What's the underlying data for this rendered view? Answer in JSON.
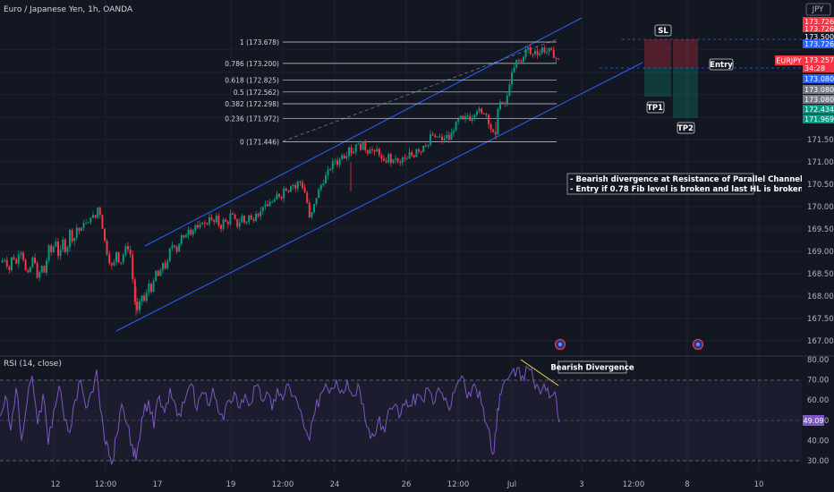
{
  "header": {
    "symbol_line": "Euro / Japanese Yen, 1h, OANDA",
    "currency": "JPY"
  },
  "price_axis": {
    "ticks": [
      "167.000",
      "167.500",
      "168.000",
      "168.500",
      "169.000",
      "169.500",
      "170.000",
      "170.500",
      "171.000",
      "171.500"
    ],
    "badges": [
      {
        "text": "173.726",
        "color": "#f23645"
      },
      {
        "text": "173.726",
        "color": "#f23645"
      },
      {
        "text": "173.500",
        "color": "#131722"
      },
      {
        "text": "173.726",
        "color": "#2962ff"
      },
      {
        "text": "173.257",
        "color": "#f23645"
      },
      {
        "text": "34:28",
        "color": "#f23645"
      },
      {
        "text": "173.080",
        "color": "#2962ff"
      },
      {
        "text": "173.080",
        "color": "#787b86"
      },
      {
        "text": "173.080",
        "color": "#787b86"
      },
      {
        "text": "172.434",
        "color": "#089981"
      },
      {
        "text": "171.969",
        "color": "#089981"
      }
    ],
    "symbol_tag": "EURJPY"
  },
  "rsi": {
    "title": "RSI (14, close)",
    "ticks": [
      "80.00",
      "70.00",
      "60.00",
      "50.00",
      "40.00",
      "30.00"
    ],
    "current": "49.09",
    "annotation": "Bearish Divergence"
  },
  "time_axis": [
    "12",
    "12:00",
    "17",
    "19",
    "12:00",
    "24",
    "26",
    "12:00",
    "Jul",
    "3",
    "12:00",
    "8",
    "10"
  ],
  "fib_levels": [
    {
      "ratio": "1",
      "label": "1 (173.678)",
      "price": 173.678
    },
    {
      "ratio": "0.786",
      "label": "0.786 (173.200)",
      "price": 173.2
    },
    {
      "ratio": "0.618",
      "label": "0.618 (172.825)",
      "price": 172.825
    },
    {
      "ratio": "0.5",
      "label": "0.5 (172.562)",
      "price": 172.562
    },
    {
      "ratio": "0.382",
      "label": "0.382 (172.298)",
      "price": 172.298
    },
    {
      "ratio": "0.236",
      "label": "0.236 (171.972)",
      "price": 171.972
    },
    {
      "ratio": "0",
      "label": "0 (171.446)",
      "price": 171.446
    }
  ],
  "trade_labels": {
    "sl": "SL",
    "entry": "Entry",
    "tp1": "TP1",
    "tp2": "TP2"
  },
  "notes": [
    "- Bearish divergence at Resistance of Parallel Channel",
    "- Entry if 0.78 Fib level is broken and last HL is broken"
  ],
  "colors": {
    "up": "#089981",
    "down": "#f23645",
    "channel": "#2962ff",
    "rsi": "#7e57c2",
    "bg": "#131722"
  },
  "chart_data": {
    "type": "candlestick",
    "title": "Euro / Japanese Yen, 1h, OANDA",
    "ylim": [
      166.8,
      173.9
    ],
    "rsi_ylim": [
      28,
      82
    ],
    "price_path": [
      [
        0,
        168.75
      ],
      [
        6,
        168.85
      ],
      [
        10,
        168.55
      ],
      [
        14,
        168.95
      ],
      [
        18,
        168.7
      ],
      [
        22,
        169.1
      ],
      [
        26,
        168.85
      ],
      [
        30,
        168.4
      ],
      [
        34,
        168.65
      ],
      [
        38,
        168.95
      ],
      [
        42,
        168.3
      ],
      [
        46,
        168.7
      ],
      [
        50,
        168.5
      ],
      [
        54,
        169.1
      ],
      [
        58,
        168.95
      ],
      [
        62,
        169.3
      ],
      [
        66,
        168.8
      ],
      [
        70,
        169.25
      ],
      [
        74,
        168.95
      ],
      [
        78,
        169.45
      ],
      [
        82,
        169.2
      ],
      [
        86,
        169.55
      ],
      [
        90,
        169.4
      ],
      [
        94,
        169.7
      ],
      [
        98,
        169.55
      ],
      [
        102,
        169.85
      ],
      [
        106,
        169.7
      ],
      [
        110,
        170.05
      ],
      [
        114,
        169.6
      ],
      [
        118,
        169.1
      ],
      [
        122,
        168.8
      ],
      [
        126,
        168.6
      ],
      [
        130,
        169.0
      ],
      [
        134,
        168.7
      ],
      [
        138,
        168.95
      ],
      [
        142,
        169.15
      ],
      [
        146,
        168.9
      ],
      [
        150,
        167.95
      ],
      [
        154,
        167.6
      ],
      [
        158,
        168.05
      ],
      [
        162,
        167.85
      ],
      [
        166,
        168.3
      ],
      [
        170,
        168.1
      ],
      [
        174,
        168.55
      ],
      [
        178,
        168.4
      ],
      [
        182,
        168.75
      ],
      [
        186,
        168.6
      ],
      [
        190,
        169.05
      ],
      [
        194,
        169.2
      ],
      [
        198,
        169.0
      ],
      [
        202,
        169.35
      ],
      [
        206,
        169.25
      ],
      [
        210,
        169.55
      ],
      [
        214,
        169.4
      ],
      [
        218,
        169.6
      ],
      [
        222,
        169.45
      ],
      [
        226,
        169.7
      ],
      [
        230,
        169.55
      ],
      [
        234,
        169.8
      ],
      [
        238,
        169.6
      ],
      [
        242,
        169.75
      ],
      [
        246,
        169.5
      ],
      [
        250,
        169.7
      ],
      [
        254,
        169.6
      ],
      [
        258,
        169.85
      ],
      [
        262,
        169.7
      ],
      [
        266,
        169.55
      ],
      [
        270,
        169.8
      ],
      [
        274,
        169.6
      ],
      [
        278,
        169.8
      ],
      [
        282,
        169.65
      ],
      [
        286,
        169.9
      ],
      [
        290,
        169.8
      ],
      [
        294,
        170.05
      ],
      [
        298,
        169.95
      ],
      [
        302,
        170.15
      ],
      [
        306,
        170.05
      ],
      [
        310,
        170.3
      ],
      [
        314,
        170.2
      ],
      [
        318,
        170.45
      ],
      [
        322,
        170.35
      ],
      [
        326,
        170.55
      ],
      [
        330,
        170.4
      ],
      [
        334,
        170.6
      ],
      [
        338,
        170.45
      ],
      [
        342,
        170.25
      ],
      [
        346,
        169.7
      ],
      [
        350,
        169.95
      ],
      [
        354,
        170.25
      ],
      [
        358,
        170.45
      ],
      [
        362,
        170.6
      ],
      [
        366,
        170.75
      ],
      [
        370,
        170.9
      ],
      [
        374,
        171.05
      ],
      [
        378,
        170.95
      ],
      [
        382,
        171.2
      ],
      [
        386,
        171.1
      ],
      [
        390,
        171.35
      ],
      [
        394,
        171.15
      ],
      [
        398,
        171.45
      ],
      [
        402,
        171.3
      ],
      [
        406,
        171.4
      ],
      [
        410,
        171.2
      ],
      [
        414,
        171.35
      ],
      [
        418,
        171.15
      ],
      [
        422,
        171.3
      ],
      [
        426,
        171.05
      ],
      [
        430,
        170.95
      ],
      [
        434,
        171.15
      ],
      [
        438,
        170.95
      ],
      [
        442,
        171.1
      ],
      [
        446,
        170.9
      ],
      [
        450,
        171.1
      ],
      [
        454,
        171.0
      ],
      [
        458,
        171.2
      ],
      [
        462,
        171.1
      ],
      [
        466,
        171.35
      ],
      [
        470,
        171.2
      ],
      [
        474,
        171.45
      ],
      [
        478,
        171.35
      ],
      [
        482,
        171.65
      ],
      [
        486,
        171.5
      ],
      [
        490,
        171.6
      ],
      [
        494,
        171.45
      ],
      [
        498,
        171.6
      ],
      [
        502,
        171.5
      ],
      [
        506,
        171.7
      ],
      [
        510,
        171.85
      ],
      [
        514,
        172.0
      ],
      [
        518,
        171.9
      ],
      [
        522,
        172.05
      ],
      [
        526,
        171.95
      ],
      [
        530,
        172.1
      ],
      [
        534,
        172.2
      ],
      [
        538,
        172.05
      ],
      [
        542,
        172.15
      ],
      [
        546,
        171.9
      ],
      [
        550,
        171.65
      ],
      [
        554,
        171.55
      ],
      [
        556,
        172.2
      ],
      [
        558,
        172.35
      ],
      [
        562,
        172.25
      ],
      [
        566,
        172.35
      ],
      [
        570,
        172.85
      ],
      [
        574,
        173.05
      ],
      [
        578,
        173.3
      ],
      [
        582,
        173.2
      ],
      [
        586,
        173.45
      ],
      [
        590,
        173.55
      ],
      [
        594,
        173.35
      ],
      [
        598,
        173.5
      ],
      [
        602,
        173.4
      ],
      [
        606,
        173.55
      ],
      [
        610,
        173.45
      ],
      [
        614,
        173.5
      ],
      [
        618,
        173.4
      ],
      [
        622,
        173.3
      ],
      [
        625,
        173.26
      ]
    ],
    "rsi_path": [
      [
        0,
        52
      ],
      [
        6,
        62
      ],
      [
        12,
        45
      ],
      [
        18,
        66
      ],
      [
        24,
        40
      ],
      [
        30,
        58
      ],
      [
        36,
        72
      ],
      [
        42,
        48
      ],
      [
        48,
        63
      ],
      [
        54,
        38
      ],
      [
        60,
        55
      ],
      [
        66,
        67
      ],
      [
        72,
        50
      ],
      [
        78,
        44
      ],
      [
        84,
        60
      ],
      [
        90,
        70
      ],
      [
        96,
        56
      ],
      [
        102,
        64
      ],
      [
        108,
        75
      ],
      [
        114,
        52
      ],
      [
        118,
        38
      ],
      [
        122,
        32
      ],
      [
        126,
        30
      ],
      [
        130,
        42
      ],
      [
        136,
        58
      ],
      [
        142,
        48
      ],
      [
        148,
        38
      ],
      [
        152,
        30
      ],
      [
        156,
        40
      ],
      [
        160,
        52
      ],
      [
        166,
        60
      ],
      [
        172,
        46
      ],
      [
        178,
        62
      ],
      [
        184,
        54
      ],
      [
        190,
        66
      ],
      [
        196,
        58
      ],
      [
        202,
        52
      ],
      [
        208,
        62
      ],
      [
        214,
        68
      ],
      [
        220,
        55
      ],
      [
        226,
        64
      ],
      [
        232,
        58
      ],
      [
        238,
        66
      ],
      [
        244,
        54
      ],
      [
        250,
        50
      ],
      [
        256,
        60
      ],
      [
        262,
        64
      ],
      [
        268,
        56
      ],
      [
        274,
        63
      ],
      [
        280,
        58
      ],
      [
        286,
        67
      ],
      [
        292,
        60
      ],
      [
        298,
        64
      ],
      [
        304,
        55
      ],
      [
        310,
        66
      ],
      [
        316,
        60
      ],
      [
        322,
        68
      ],
      [
        328,
        62
      ],
      [
        334,
        56
      ],
      [
        340,
        46
      ],
      [
        346,
        40
      ],
      [
        352,
        54
      ],
      [
        358,
        63
      ],
      [
        364,
        68
      ],
      [
        370,
        66
      ],
      [
        376,
        70
      ],
      [
        382,
        65
      ],
      [
        388,
        70
      ],
      [
        394,
        62
      ],
      [
        400,
        68
      ],
      [
        406,
        58
      ],
      [
        412,
        46
      ],
      [
        418,
        42
      ],
      [
        424,
        52
      ],
      [
        430,
        44
      ],
      [
        436,
        56
      ],
      [
        442,
        58
      ],
      [
        448,
        53
      ],
      [
        454,
        60
      ],
      [
        460,
        57
      ],
      [
        466,
        63
      ],
      [
        472,
        60
      ],
      [
        478,
        66
      ],
      [
        484,
        58
      ],
      [
        490,
        66
      ],
      [
        496,
        60
      ],
      [
        502,
        55
      ],
      [
        508,
        64
      ],
      [
        514,
        70
      ],
      [
        520,
        66
      ],
      [
        526,
        62
      ],
      [
        532,
        66
      ],
      [
        538,
        58
      ],
      [
        544,
        48
      ],
      [
        548,
        40
      ],
      [
        552,
        34
      ],
      [
        556,
        56
      ],
      [
        560,
        63
      ],
      [
        566,
        70
      ],
      [
        572,
        74
      ],
      [
        578,
        76
      ],
      [
        584,
        72
      ],
      [
        590,
        76
      ],
      [
        596,
        70
      ],
      [
        602,
        66
      ],
      [
        608,
        68
      ],
      [
        614,
        61
      ],
      [
        620,
        64
      ],
      [
        625,
        49
      ]
    ]
  }
}
